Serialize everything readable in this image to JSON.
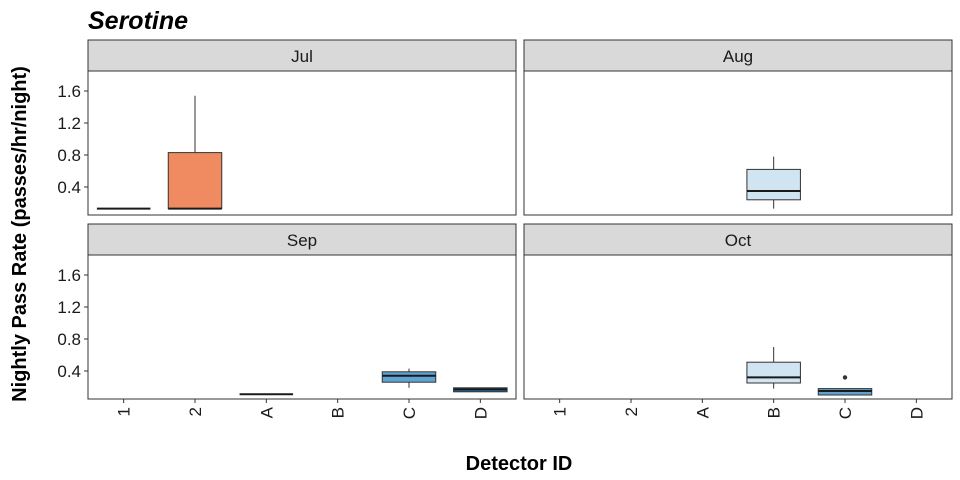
{
  "chart_data": {
    "type": "boxplot",
    "title": "Serotine",
    "xlabel": "Detector ID",
    "ylabel": "Nightly Pass Rate (passes/hr/night)",
    "categories": [
      "1",
      "2",
      "A",
      "B",
      "C",
      "D"
    ],
    "yticks": [
      0.4,
      0.8,
      1.2,
      1.6
    ],
    "ylim": [
      0.05,
      1.85
    ],
    "legend": "none",
    "grid": false,
    "facet_layout": "2x2",
    "panels": [
      {
        "label": "Jul",
        "boxes": [
          {
            "category": "1",
            "min": 0.13,
            "q1": 0.13,
            "median": 0.13,
            "q3": 0.13,
            "max": 0.13,
            "fill": "#f08a60",
            "outliers": []
          },
          {
            "category": "2",
            "min": 0.13,
            "q1": 0.13,
            "median": 0.13,
            "q3": 0.83,
            "max": 1.54,
            "fill": "#f08a60",
            "outliers": []
          }
        ]
      },
      {
        "label": "Aug",
        "boxes": [
          {
            "category": "B",
            "min": 0.13,
            "q1": 0.24,
            "median": 0.35,
            "q3": 0.62,
            "max": 0.78,
            "fill": "#d0e4f2",
            "outliers": []
          }
        ]
      },
      {
        "label": "Sep",
        "boxes": [
          {
            "category": "A",
            "min": 0.11,
            "q1": 0.11,
            "median": 0.11,
            "q3": 0.11,
            "max": 0.11,
            "fill": "#d0e4f2",
            "outliers": []
          },
          {
            "category": "C",
            "min": 0.19,
            "q1": 0.26,
            "median": 0.34,
            "q3": 0.39,
            "max": 0.43,
            "fill": "#5ea3d1",
            "outliers": []
          },
          {
            "category": "D",
            "min": 0.14,
            "q1": 0.14,
            "median": 0.17,
            "q3": 0.19,
            "max": 0.19,
            "fill": "#2c6fae",
            "outliers": []
          }
        ]
      },
      {
        "label": "Oct",
        "boxes": [
          {
            "category": "B",
            "min": 0.18,
            "q1": 0.25,
            "median": 0.32,
            "q3": 0.51,
            "max": 0.7,
            "fill": "#d0e4f2",
            "outliers": []
          },
          {
            "category": "C",
            "min": 0.1,
            "q1": 0.1,
            "median": 0.15,
            "q3": 0.18,
            "max": 0.18,
            "fill": "#5ea3d1",
            "outliers": [
              0.32
            ]
          }
        ]
      }
    ]
  }
}
